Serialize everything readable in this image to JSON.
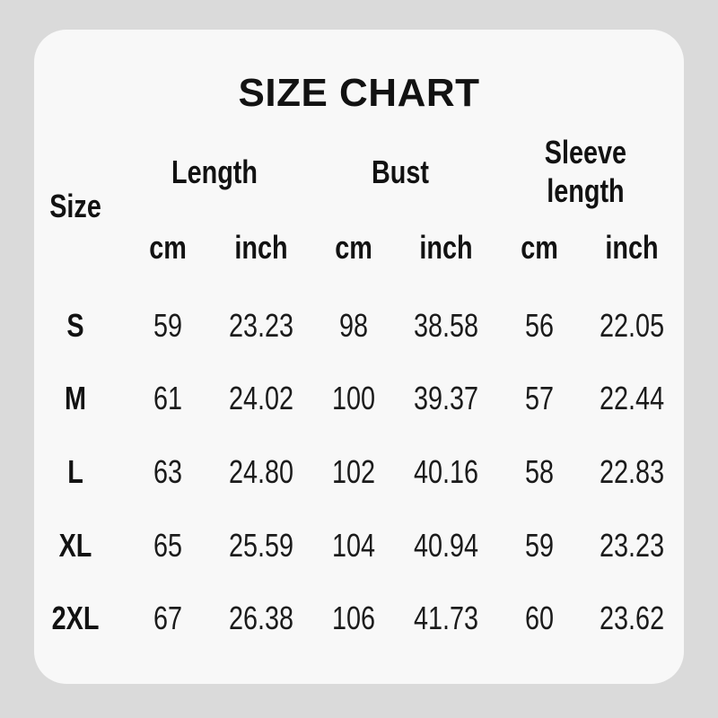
{
  "title": "SIZE CHART",
  "colors": {
    "page_background": "#dadada",
    "card_background": "#f8f8f8",
    "text": "#121212"
  },
  "table": {
    "size_header": "Size",
    "groups": [
      "Length",
      "Bust",
      "Sleeve length"
    ],
    "units": [
      "cm",
      "inch",
      "cm",
      "inch",
      "cm",
      "inch"
    ],
    "rows": [
      {
        "size": "S",
        "cells": [
          "59",
          "23.23",
          "98",
          "38.58",
          "56",
          "22.05"
        ]
      },
      {
        "size": "M",
        "cells": [
          "61",
          "24.02",
          "100",
          "39.37",
          "57",
          "22.44"
        ]
      },
      {
        "size": "L",
        "cells": [
          "63",
          "24.80",
          "102",
          "40.16",
          "58",
          "22.83"
        ]
      },
      {
        "size": "XL",
        "cells": [
          "65",
          "25.59",
          "104",
          "40.94",
          "59",
          "23.23"
        ]
      },
      {
        "size": "2XL",
        "cells": [
          "67",
          "26.38",
          "106",
          "41.73",
          "60",
          "23.62"
        ]
      }
    ]
  },
  "chart_data": {
    "type": "table",
    "title": "SIZE CHART",
    "column_groups": [
      "Size",
      "Length",
      "Bust",
      "Sleeve length"
    ],
    "columns": [
      "Size",
      "Length cm",
      "Length inch",
      "Bust cm",
      "Bust inch",
      "Sleeve length cm",
      "Sleeve length inch"
    ],
    "rows": [
      [
        "S",
        59,
        23.23,
        98,
        38.58,
        56,
        22.05
      ],
      [
        "M",
        61,
        24.02,
        100,
        39.37,
        57,
        22.44
      ],
      [
        "L",
        63,
        24.8,
        102,
        40.16,
        58,
        22.83
      ],
      [
        "XL",
        65,
        25.59,
        104,
        40.94,
        59,
        23.23
      ],
      [
        "2XL",
        67,
        26.38,
        106,
        41.73,
        60,
        23.62
      ]
    ]
  }
}
